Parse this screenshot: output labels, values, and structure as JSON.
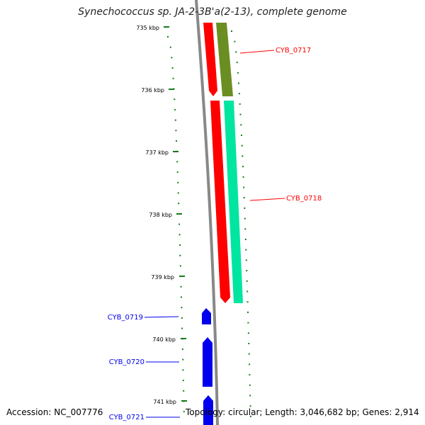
{
  "title": "Synechococcus sp. JA-2-3B'a(2-13), complete genome",
  "footer": {
    "accession": "Accession: NC_007776",
    "topology": "Topology: circular; Length: 3,046,682 bp; Genes: 2,914"
  },
  "colors": {
    "backbone": "#888888",
    "ticks": "#1a7a1a",
    "gene_red": "#ff0000",
    "gene_olive": "#6b8e23",
    "gene_aqua": "#00e5a0",
    "gene_blue": "#0000ee"
  },
  "scale_labels": [
    "735 kbp",
    "736 kbp",
    "737 kbp",
    "738 kbp",
    "739 kbp",
    "740 kbp",
    "741 kbp"
  ],
  "genes": [
    {
      "id": "CYB_0717",
      "label": "CYB_0717",
      "color": "#ff0000"
    },
    {
      "id": "CYB_0718",
      "label": "CYB_0718",
      "color": "#ff0000"
    },
    {
      "id": "CYB_0719",
      "label": "CYB_0719",
      "color": "#0000ee"
    },
    {
      "id": "CYB_0720",
      "label": "CYB_0720",
      "color": "#0000ee"
    },
    {
      "id": "CYB_0721",
      "label": "CYB_0721",
      "color": "#0000ee"
    }
  ]
}
